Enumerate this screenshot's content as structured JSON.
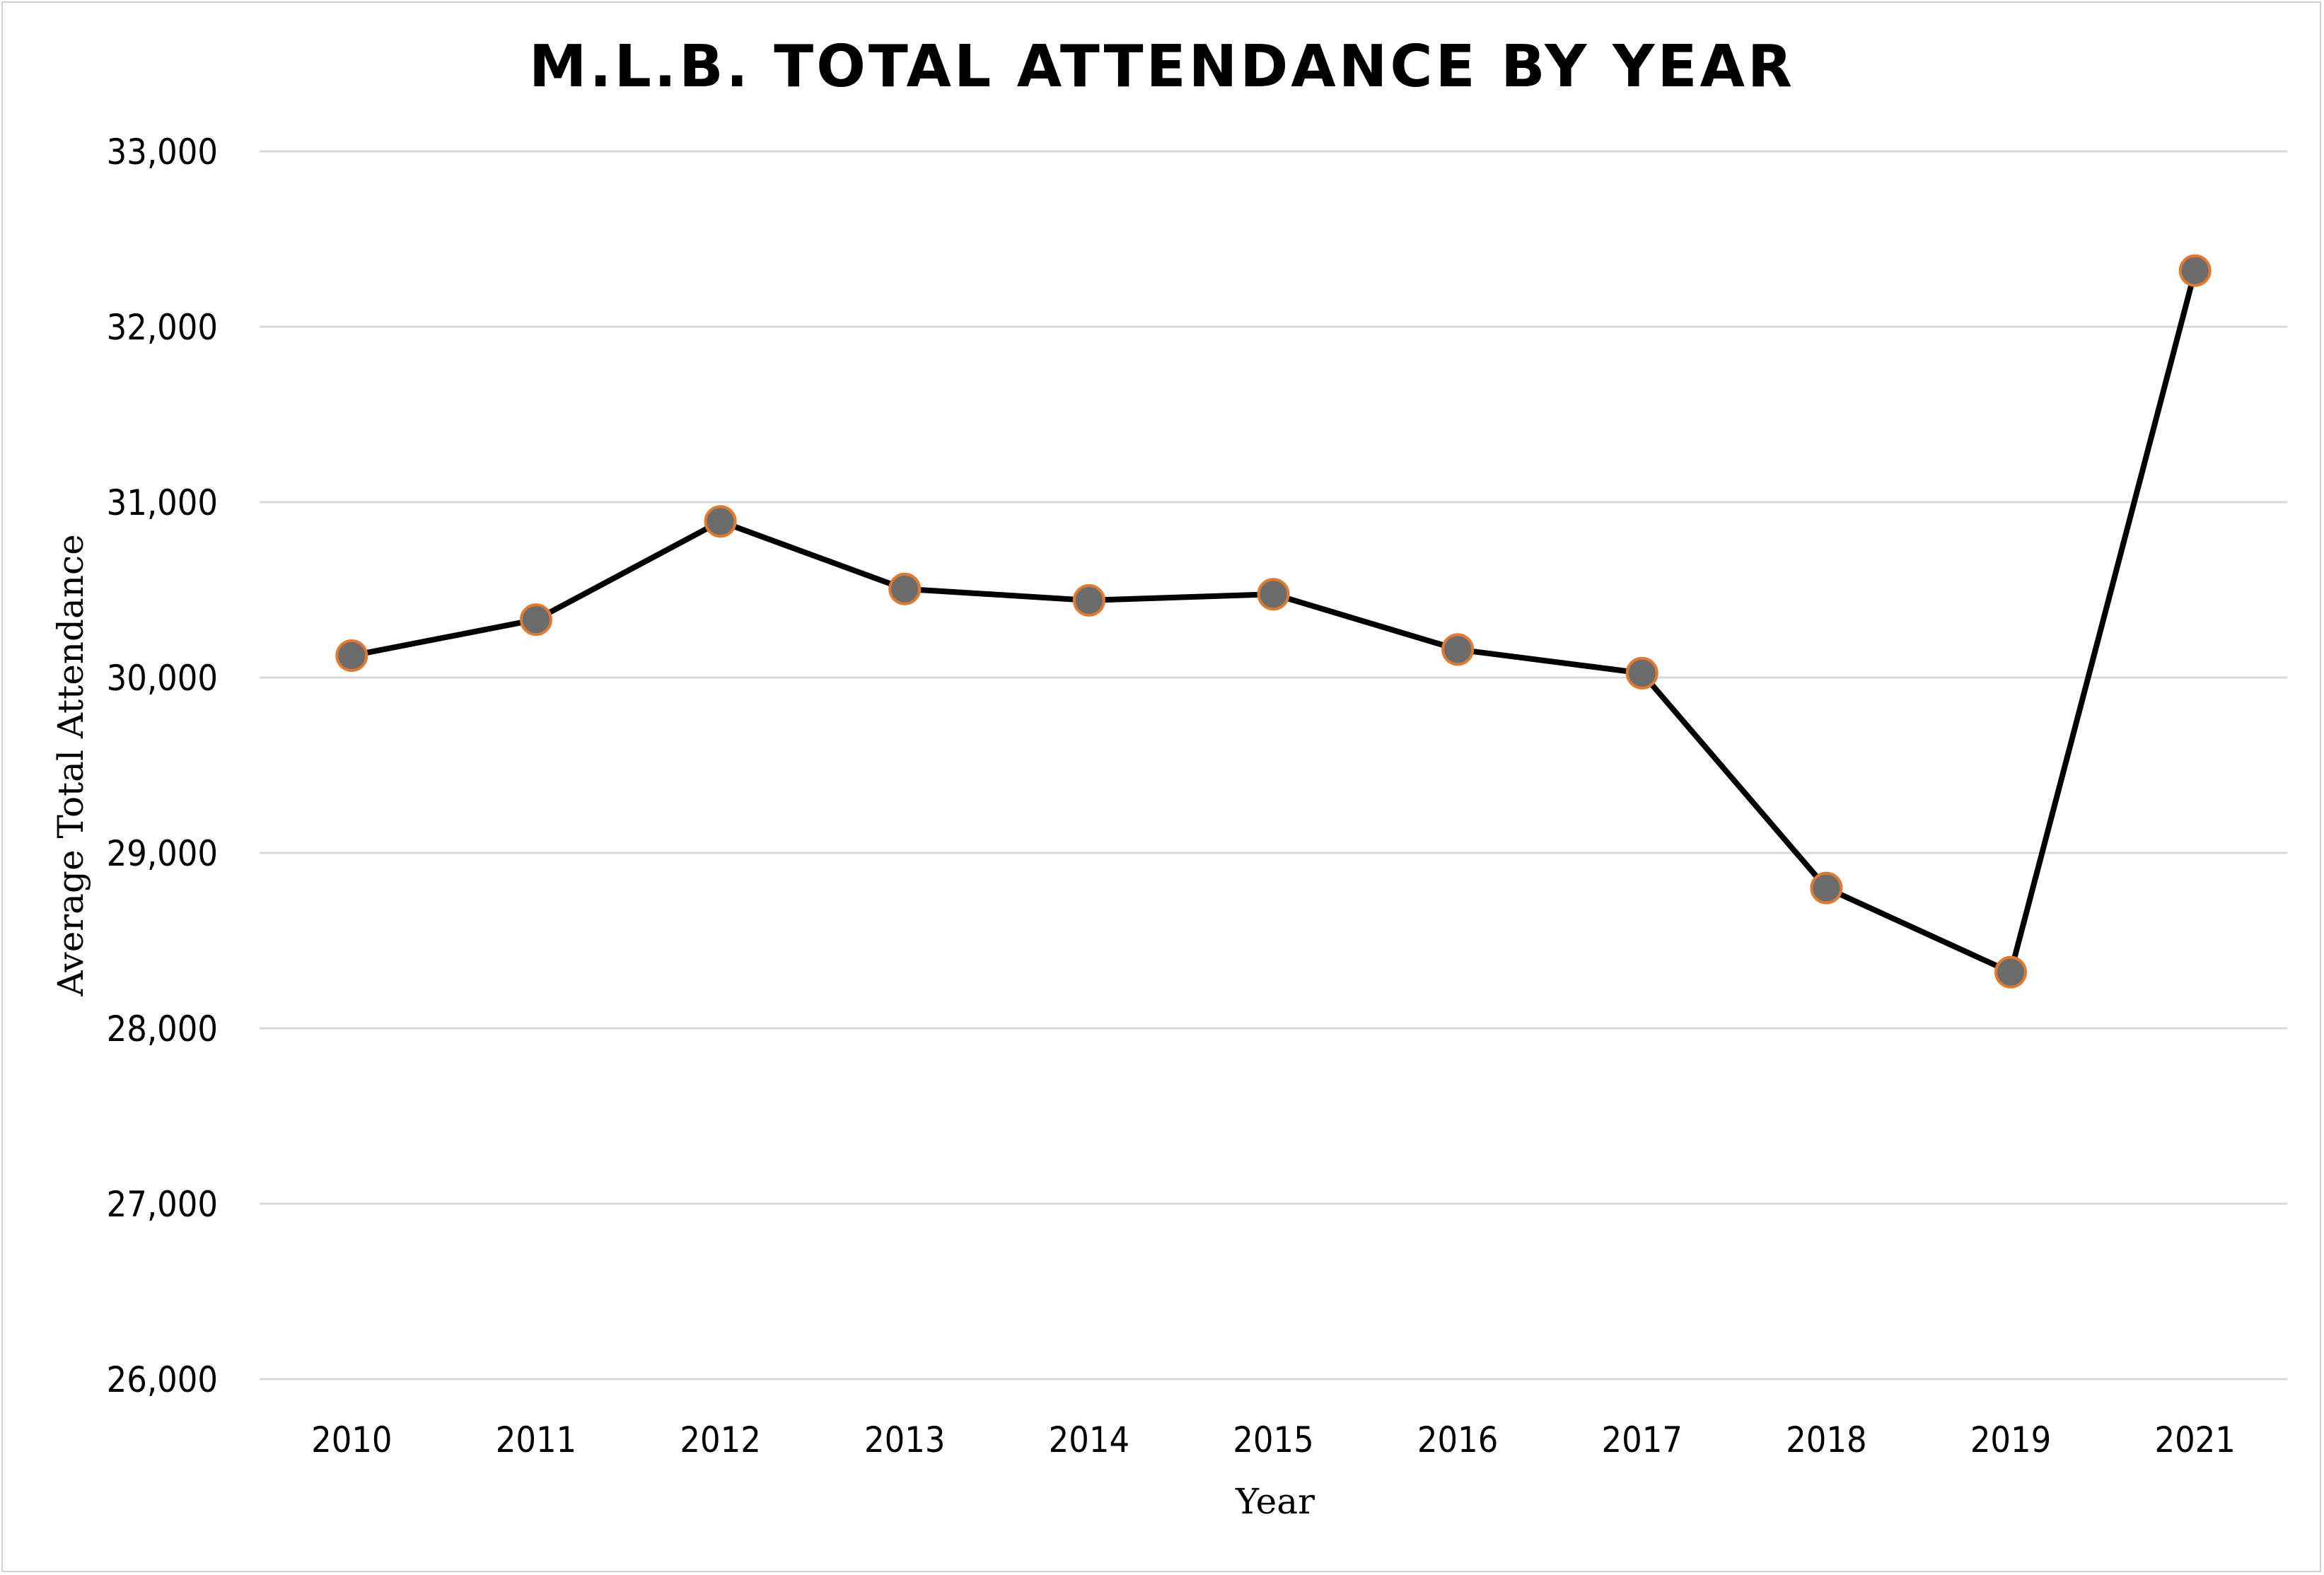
{
  "chart_data": {
    "type": "line",
    "title": "M.L.B. TOTAL ATTENDANCE BY YEAR",
    "xlabel": "Year",
    "ylabel": "Average Total Attendance",
    "categories": [
      "2010",
      "2011",
      "2012",
      "2013",
      "2014",
      "2015",
      "2016",
      "2017",
      "2018",
      "2019",
      "2021"
    ],
    "series": [
      {
        "values": [
          30125,
          30330,
          30890,
          30505,
          30440,
          30475,
          30160,
          30025,
          28800,
          28320,
          32320
        ]
      }
    ],
    "ylim": [
      26000,
      33000
    ],
    "yticks": [
      26000,
      27000,
      28000,
      29000,
      30000,
      31000,
      32000,
      33000
    ],
    "ytick_labels": [
      "26,000",
      "27,000",
      "28,000",
      "29,000",
      "30,000",
      "31,000",
      "32,000",
      "33,000"
    ],
    "grid": "horizontal",
    "legend": "none",
    "colors": {
      "line": "#000000",
      "marker_fill": "#6b6b6b",
      "marker_edge": "#e07a30",
      "grid": "#d9d9d9"
    }
  }
}
